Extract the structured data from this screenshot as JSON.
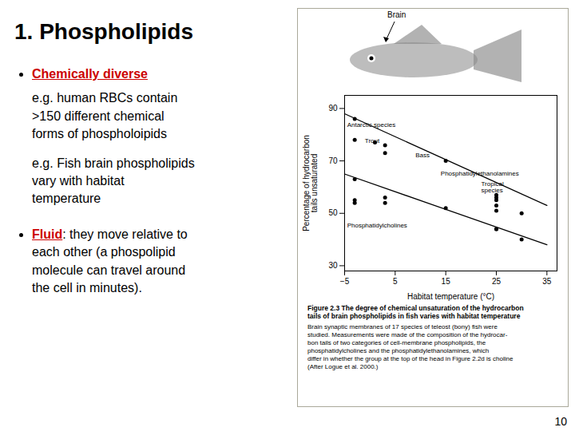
{
  "chart_data": {
    "type": "scatter",
    "title": "1. Phospholipids",
    "xlabel": "Habitat temperature (°C)",
    "ylabel": "Percentage of hydrocarbon\ntails unsaturated",
    "xlim": [
      -5,
      37
    ],
    "xticks": [
      -5,
      5,
      15,
      25,
      35
    ],
    "ylim": [
      28,
      95
    ],
    "yticks": [
      30,
      50,
      70,
      90
    ],
    "series": [
      {
        "type": "scatter",
        "color": "#000000",
        "x": [
          -3,
          -3,
          1,
          3,
          3,
          15,
          25,
          25
        ],
        "values": [
          86,
          78,
          77,
          76,
          73,
          70,
          57,
          56
        ]
      },
      {
        "type": "scatter",
        "color": "#000000",
        "x": [
          -3,
          -3,
          -3,
          3,
          3,
          15,
          25,
          25,
          25,
          25,
          30
        ],
        "values": [
          63,
          55,
          54,
          56,
          54,
          52,
          55,
          53,
          51,
          44,
          50
        ]
      },
      {
        "type": "scatter",
        "color": "#000000",
        "x": [
          25,
          30
        ],
        "values": [
          44,
          40
        ]
      },
      {
        "type": "line",
        "color": "#000000",
        "x": [
          -5,
          35
        ],
        "values": [
          88,
          53
        ]
      },
      {
        "type": "line",
        "color": "#000000",
        "x": [
          -5,
          35
        ],
        "values": [
          65,
          38
        ]
      }
    ],
    "annotations": [
      {
        "text": "Chemically diverse",
        "color": "#cc0000"
      },
      {
        "text": "e.g. human RBCs contain\n>150 different chemical\nforms of phospholoipids"
      },
      {
        "text": "e.g. Fish brain phospholipids\nvary with habitat\ntemperature"
      },
      {
        "text": "Fluid",
        "color": "#cc0000"
      },
      {
        "text": ": they move relative to\neach other (a phospolipid\nmolecule can travel around\nthe cell in minutes)."
      },
      {
        "text": "Brain"
      },
      {
        "text": "Figure 2.3  The degree of chemical unsaturation of the hydrocarbon\ntails of brain phospholipids in fish varies with habitat temperature"
      },
      {
        "text": "Brain synaptic membranes of 17 species of teleost (bony) fish were\nstudied. Measurements were made of the composition of the hydrocar-\nbon tails of two categories of cell-membrane phospholipids, the\nphosphatidylcholines and the phosphatidylethanolamines, which\ndiffer in whether the group at the top of the head in Figure 2.2d is choline\n(After Logue et al. 2000.)"
      },
      {
        "text": "10"
      },
      {
        "text": "Antarctic species",
        "x": -4.5,
        "y": 83
      },
      {
        "text": "Trout",
        "x": -1,
        "y": 77
      },
      {
        "text": "Bass",
        "x": 9,
        "y": 71.5
      },
      {
        "text": "Phosphatidylethanolamines",
        "x": 14,
        "y": 64.5
      },
      {
        "text": "Phosphatidylcholines",
        "x": -4.5,
        "y": 44.5
      },
      {
        "text": "Tropical\nspecies",
        "x": 22,
        "y": 58
      }
    ]
  }
}
